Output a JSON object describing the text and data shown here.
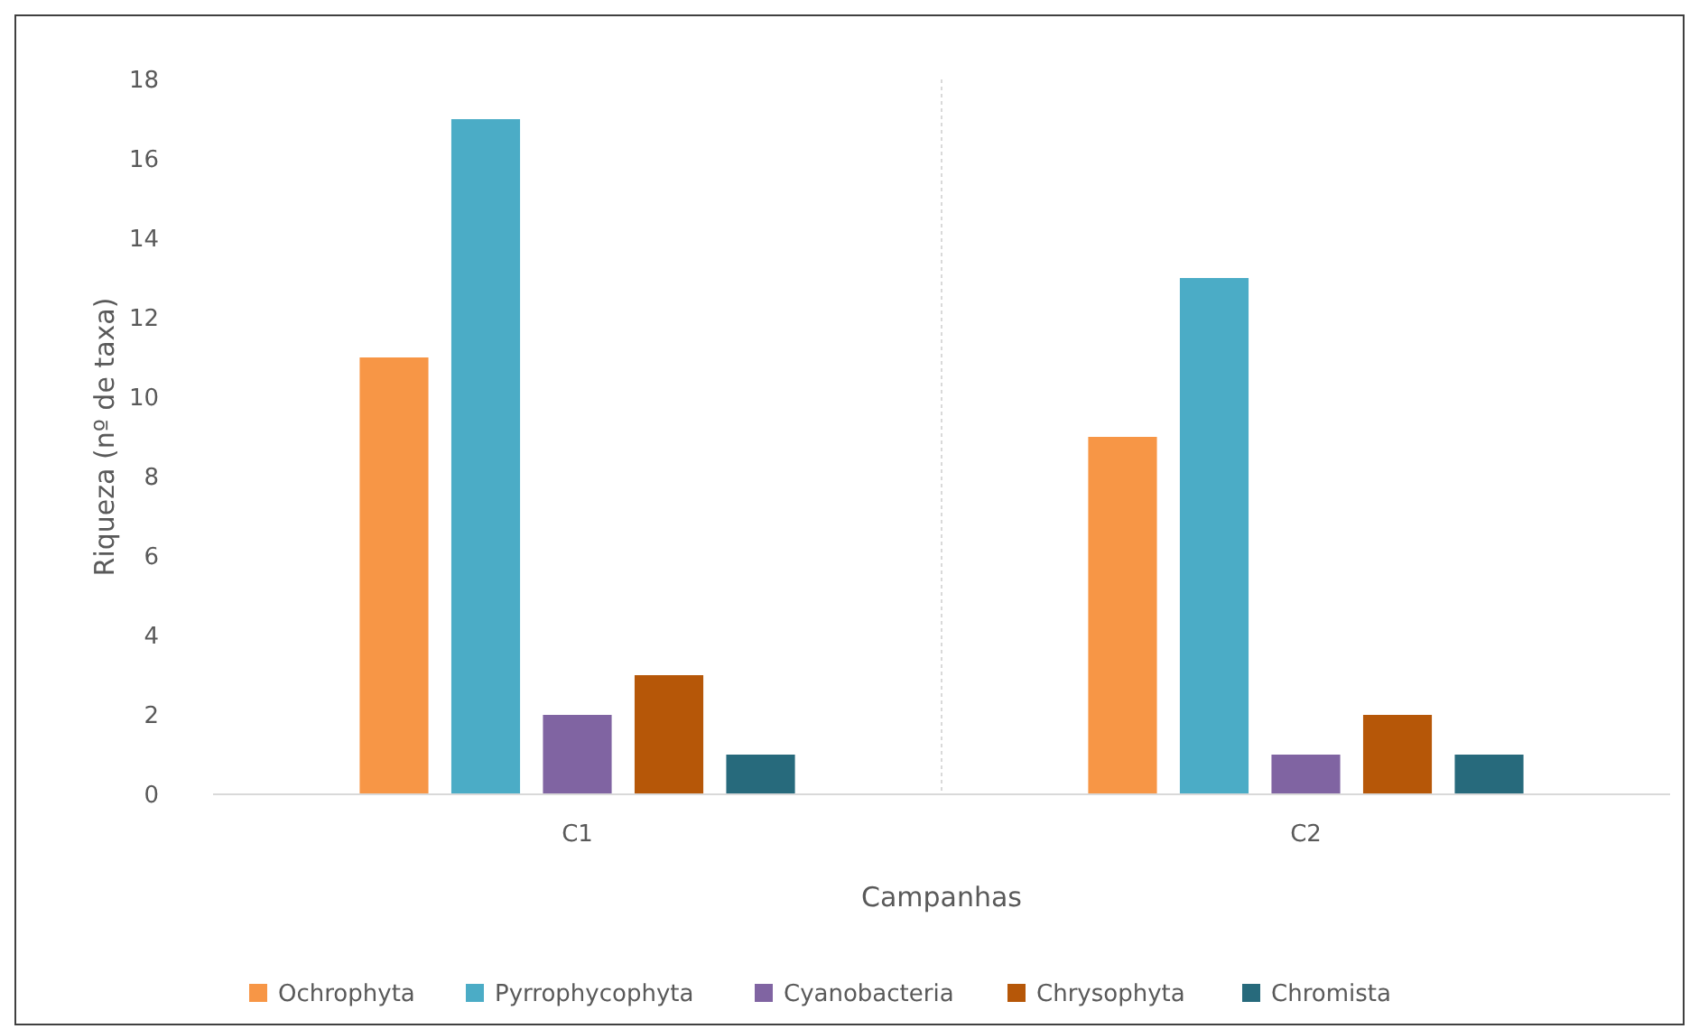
{
  "chart_data": {
    "type": "bar",
    "xlabel": "Campanhas",
    "ylabel": "Riqueza (nº de taxa)",
    "categories": [
      "C1",
      "C2"
    ],
    "series": [
      {
        "name": "Ochrophyta",
        "color": "#f79646",
        "values": [
          11,
          9
        ]
      },
      {
        "name": "Pyrrophycophyta",
        "color": "#4bacc6",
        "values": [
          17,
          13
        ]
      },
      {
        "name": "Cyanobacteria",
        "color": "#8064a2",
        "values": [
          2,
          1
        ]
      },
      {
        "name": "Chrysophyta",
        "color": "#b65708",
        "values": [
          3,
          2
        ]
      },
      {
        "name": "Chromista",
        "color": "#276a7c",
        "values": [
          1,
          1
        ]
      }
    ],
    "ylim": [
      0,
      18
    ],
    "yticks": [
      0,
      2,
      4,
      6,
      8,
      10,
      12,
      14,
      16,
      18
    ],
    "grid": "x",
    "legend": "bottom"
  }
}
